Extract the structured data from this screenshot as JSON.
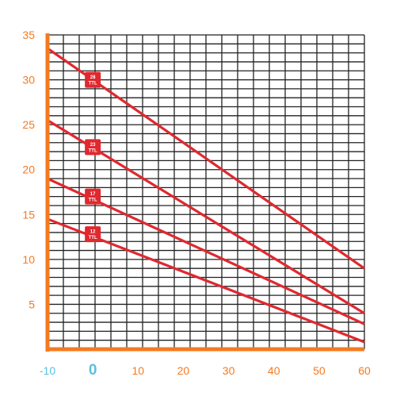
{
  "chart_data": {
    "type": "line",
    "title": "",
    "xlabel": "",
    "ylabel": "",
    "xlim": [
      -10,
      60
    ],
    "ylim": [
      0,
      35
    ],
    "grid": true,
    "x_ticks": [
      {
        "value": -10,
        "label": "-10",
        "emphasis": "muted"
      },
      {
        "value": 0,
        "label": "0",
        "emphasis": "strong"
      },
      {
        "value": 10,
        "label": "10",
        "emphasis": "normal"
      },
      {
        "value": 20,
        "label": "20",
        "emphasis": "normal"
      },
      {
        "value": 30,
        "label": "30",
        "emphasis": "normal"
      },
      {
        "value": 40,
        "label": "40",
        "emphasis": "normal"
      },
      {
        "value": 50,
        "label": "50",
        "emphasis": "normal"
      },
      {
        "value": 60,
        "label": "60",
        "emphasis": "normal"
      }
    ],
    "y_ticks": [
      {
        "value": 5,
        "label": "5"
      },
      {
        "value": 10,
        "label": "10"
      },
      {
        "value": 15,
        "label": "15"
      },
      {
        "value": 20,
        "label": "20"
      },
      {
        "value": 25,
        "label": "25"
      },
      {
        "value": 30,
        "label": "30"
      },
      {
        "value": 35,
        "label": "35"
      }
    ],
    "series": [
      {
        "label_top": "28",
        "label_bottom": "TTL",
        "points": [
          [
            -10,
            33.5
          ],
          [
            60,
            9.0
          ]
        ],
        "badge_at": [
          0,
          30.0
        ]
      },
      {
        "label_top": "23",
        "label_bottom": "TTL",
        "points": [
          [
            -10,
            25.5
          ],
          [
            60,
            4.0
          ]
        ],
        "badge_at": [
          0,
          22.5
        ]
      },
      {
        "label_top": "17",
        "label_bottom": "TTL",
        "points": [
          [
            -10,
            19.0
          ],
          [
            60,
            2.8
          ]
        ],
        "badge_at": [
          0,
          17.0
        ]
      },
      {
        "label_top": "12",
        "label_bottom": "TTL",
        "points": [
          [
            -10,
            14.5
          ],
          [
            60,
            0.8
          ]
        ],
        "badge_at": [
          0,
          12.8
        ]
      }
    ]
  },
  "colors": {
    "axis": "#f47a20",
    "tick_label": "#f47a20",
    "tick_label_muted": "#5bc0de",
    "tick_label_strong": "#5bc0de",
    "grid": "#222222",
    "line": "#e0282f",
    "badge_text": "#ffffff",
    "background": "#ffffff"
  }
}
